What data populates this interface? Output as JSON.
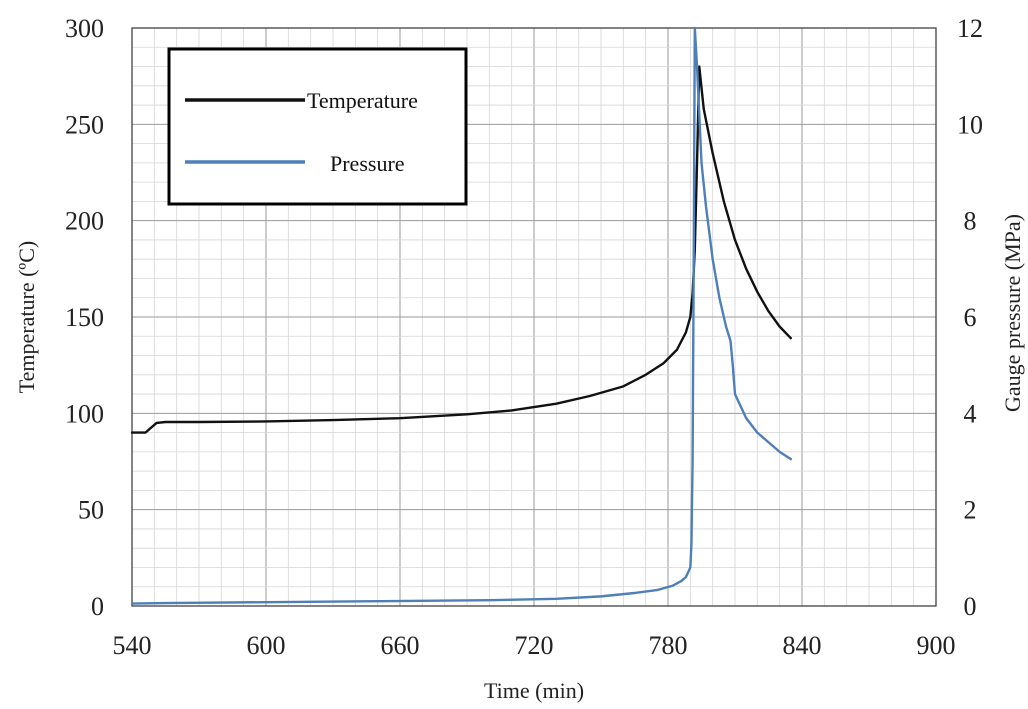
{
  "chart_data": {
    "type": "line",
    "xlabel": "Time (min)",
    "ylabel": "Temperature (ºC)",
    "y2label": "Gauge pressure (MPa)",
    "xlim": [
      540,
      900
    ],
    "ylim": [
      0,
      300
    ],
    "y2lim": [
      0,
      12
    ],
    "x_ticks": [
      "540",
      "600",
      "660",
      "720",
      "780",
      "840",
      "900"
    ],
    "y_ticks": [
      "0",
      "50",
      "100",
      "150",
      "200",
      "250",
      "300"
    ],
    "y2_ticks": [
      "0",
      "2",
      "4",
      "6",
      "8",
      "10",
      "12"
    ],
    "grid": true,
    "legend_position": "top-left",
    "series": [
      {
        "name": "Temperature",
        "axis": "left",
        "color": "#111111",
        "x": [
          540,
          546,
          548,
          551,
          555,
          570,
          600,
          630,
          660,
          690,
          710,
          730,
          745,
          760,
          770,
          778,
          784,
          788,
          790,
          791,
          792,
          793,
          794,
          796,
          800,
          805,
          810,
          815,
          820,
          825,
          830,
          835
        ],
        "y": [
          90,
          90,
          92,
          95,
          95.5,
          95.5,
          95.8,
          96.5,
          97.5,
          99.5,
          101.5,
          105,
          109,
          114,
          120,
          126,
          133,
          142,
          150,
          162,
          185,
          230,
          280,
          258,
          235,
          210,
          190,
          175,
          163,
          153,
          145,
          139
        ]
      },
      {
        "name": "Pressure",
        "axis": "right",
        "color": "#4f7fb8",
        "x": [
          540,
          555,
          600,
          650,
          700,
          730,
          750,
          765,
          775,
          782,
          786,
          788,
          790,
          790.5,
          791,
          791.5,
          792,
          793,
          794,
          795,
          797,
          800,
          803,
          806,
          808,
          809,
          810,
          815,
          820,
          825,
          830,
          835
        ],
        "y": [
          0.05,
          0.06,
          0.08,
          0.1,
          0.12,
          0.15,
          0.2,
          0.27,
          0.33,
          0.42,
          0.52,
          0.6,
          0.8,
          1.3,
          3,
          7,
          12,
          11.2,
          10.2,
          9.2,
          8.3,
          7.2,
          6.4,
          5.8,
          5.5,
          5.0,
          4.4,
          3.9,
          3.6,
          3.4,
          3.2,
          3.05
        ]
      }
    ]
  }
}
